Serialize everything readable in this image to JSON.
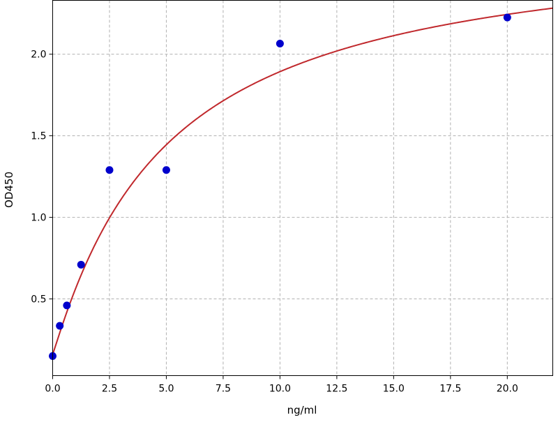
{
  "chart_data": {
    "type": "scatter",
    "title": "",
    "xlabel": "ng/ml",
    "ylabel": "OD450",
    "xlim": [
      0,
      22
    ],
    "ylim": [
      0.03,
      2.33
    ],
    "grid": true,
    "x_ticks": [
      0.0,
      2.5,
      5.0,
      7.5,
      10.0,
      12.5,
      15.0,
      17.5,
      20.0
    ],
    "x_tick_labels": [
      "0.0",
      "2.5",
      "5.0",
      "7.5",
      "10.0",
      "12.5",
      "15.0",
      "17.5",
      "20.0"
    ],
    "y_ticks": [
      0.5,
      1.0,
      1.5,
      2.0
    ],
    "y_tick_labels": [
      "0.5",
      "1.0",
      "1.5",
      "2.0"
    ],
    "series": [
      {
        "kind": "points",
        "color": "#0000cc",
        "x": [
          0,
          0.3125,
          0.625,
          1.25,
          2.5,
          5,
          10,
          20
        ],
        "y": [
          0.15,
          0.335,
          0.46,
          0.71,
          1.29,
          1.29,
          2.065,
          2.225
        ]
      },
      {
        "kind": "fit-curve",
        "color": "#c0282c",
        "model": "4-parameter logistic",
        "params": {
          "A": 0.16,
          "D": 2.73,
          "C": 5.0,
          "B": 1.05
        },
        "x_range": [
          0,
          22
        ]
      }
    ]
  }
}
